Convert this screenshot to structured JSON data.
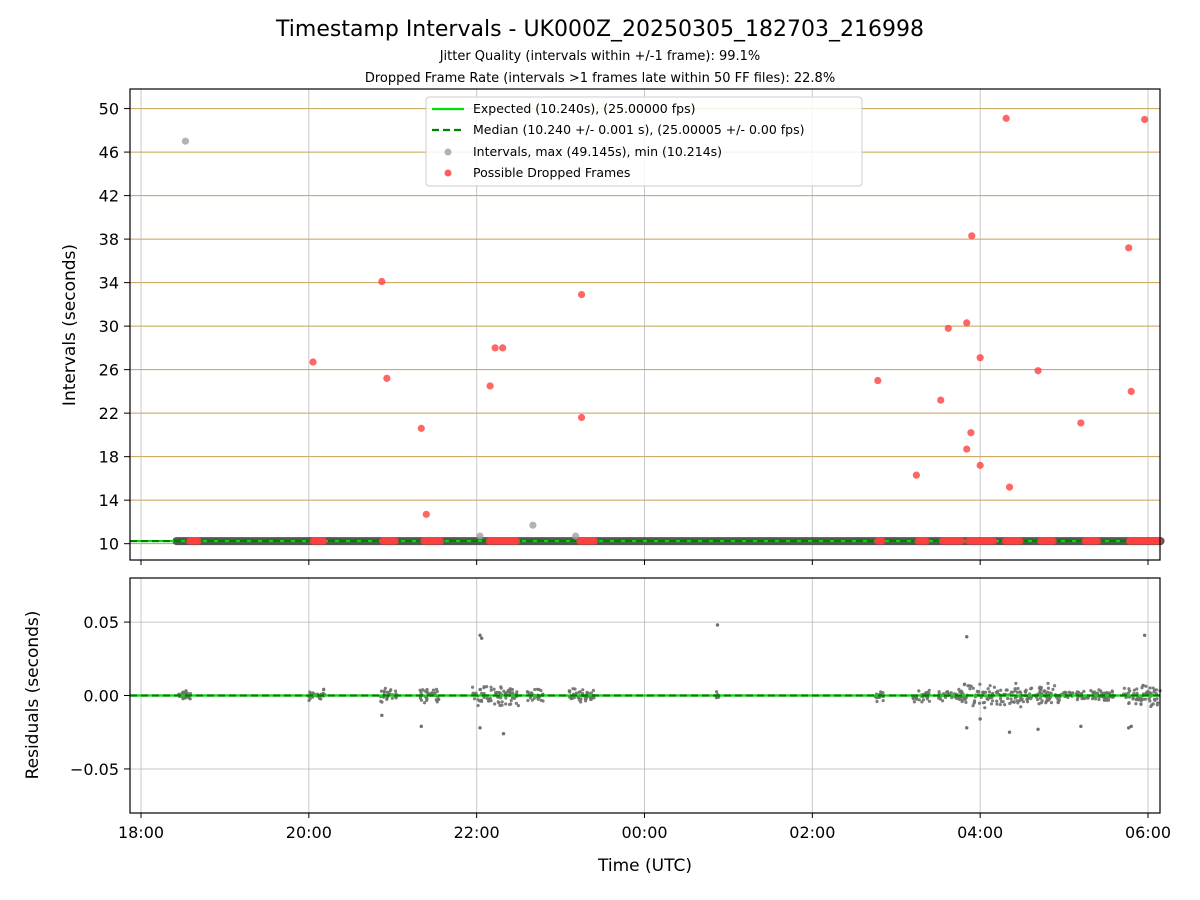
{
  "title": "Timestamp Intervals - UK000Z_20250305_182703_216998",
  "subtitle1": "Jitter Quality (intervals within +/-1 frame): 99.1%",
  "subtitle2": "Dropped Frame Rate (intervals >1 frames late within 50 FF files): 22.8%",
  "colors": {
    "expected": "#00e000",
    "median": "#007f00",
    "interval_point": "#a0a0a0",
    "dropped_point": "#ff4040",
    "hgrid_top": "#c8a050",
    "grid": "#b0b0b0",
    "residual_point": "#707070"
  },
  "chart_data": [
    {
      "type": "scatter",
      "panel": "intervals",
      "ylabel": "Intervals (seconds)",
      "x_unit": "hours since 18:00 UTC on the x axis",
      "xlim_labels": [
        "18:00",
        "06:00"
      ],
      "ylim": [
        8.5,
        51.8
      ],
      "yticks": [
        10,
        14,
        18,
        22,
        26,
        30,
        34,
        38,
        42,
        46,
        50
      ],
      "xticks": [
        "18:00",
        "20:00",
        "22:00",
        "00:00",
        "02:00",
        "04:00",
        "06:00"
      ],
      "grid": true,
      "legend_placement": "top-center",
      "legend": [
        {
          "label": "Expected (10.240s), (25.00000 fps)",
          "kind": "solid-line",
          "color": "#00e000"
        },
        {
          "label": "Median (10.240 +/- 0.001 s), (25.00005 +/- 0.00 fps)",
          "kind": "dashed-line",
          "color": "#007f00"
        },
        {
          "label": "Intervals, max (49.145s), min (10.214s)",
          "kind": "marker",
          "color": "#a0a0a0"
        },
        {
          "label": "Possible Dropped Frames",
          "kind": "marker",
          "color": "#ff4040"
        }
      ],
      "expected_interval": 10.24,
      "median_interval": 10.24,
      "baseline_span": [
        -0.15,
        12.15
      ],
      "gray_outliers": [
        {
          "x": 0.53,
          "y": 47.0
        },
        {
          "x": 4.04,
          "y": 10.7
        },
        {
          "x": 4.67,
          "y": 11.7
        },
        {
          "x": 5.18,
          "y": 10.7
        }
      ],
      "dropped_outliers": [
        {
          "x": 2.05,
          "y": 26.7
        },
        {
          "x": 2.87,
          "y": 34.1
        },
        {
          "x": 2.93,
          "y": 25.2
        },
        {
          "x": 3.34,
          "y": 20.6
        },
        {
          "x": 3.4,
          "y": 12.7
        },
        {
          "x": 4.16,
          "y": 24.5
        },
        {
          "x": 4.22,
          "y": 28.0
        },
        {
          "x": 4.31,
          "y": 28.0
        },
        {
          "x": 5.25,
          "y": 32.9
        },
        {
          "x": 5.25,
          "y": 21.6
        },
        {
          "x": 8.78,
          "y": 25.0
        },
        {
          "x": 9.24,
          "y": 16.3
        },
        {
          "x": 9.53,
          "y": 23.2
        },
        {
          "x": 9.62,
          "y": 29.8
        },
        {
          "x": 9.84,
          "y": 30.3
        },
        {
          "x": 9.84,
          "y": 18.7
        },
        {
          "x": 9.89,
          "y": 20.2
        },
        {
          "x": 9.9,
          "y": 38.3
        },
        {
          "x": 10.0,
          "y": 27.1
        },
        {
          "x": 10.0,
          "y": 17.2
        },
        {
          "x": 10.31,
          "y": 49.1
        },
        {
          "x": 10.35,
          "y": 15.2
        },
        {
          "x": 10.69,
          "y": 25.9
        },
        {
          "x": 11.2,
          "y": 21.1
        },
        {
          "x": 11.77,
          "y": 37.2
        },
        {
          "x": 11.8,
          "y": 24.0
        },
        {
          "x": 11.96,
          "y": 49.0
        }
      ],
      "dropped_near_expected_ranges": [
        [
          0.58,
          0.68
        ],
        [
          2.05,
          2.18
        ],
        [
          2.88,
          3.05
        ],
        [
          3.37,
          3.57
        ],
        [
          4.15,
          4.48
        ],
        [
          5.23,
          5.42
        ],
        [
          8.78,
          8.84
        ],
        [
          9.26,
          9.38
        ],
        [
          9.55,
          9.78
        ],
        [
          9.86,
          10.17
        ],
        [
          10.3,
          10.48
        ],
        [
          10.72,
          10.88
        ],
        [
          11.25,
          11.42
        ],
        [
          11.78,
          12.15
        ]
      ]
    },
    {
      "type": "scatter",
      "panel": "residuals",
      "ylabel": "Residuals (seconds)",
      "xlabel": "Time (UTC)",
      "ylim": [
        -0.08,
        0.08
      ],
      "yticks": [
        0.05,
        0.0,
        -0.05
      ],
      "ytick_labels": [
        "0.05",
        "0.00",
        "−0.05"
      ],
      "xticks": [
        "18:00",
        "20:00",
        "22:00",
        "00:00",
        "02:00",
        "04:00",
        "06:00"
      ],
      "grid": true,
      "residual_outliers": [
        {
          "x": 2.87,
          "y": -0.0135
        },
        {
          "x": 3.34,
          "y": -0.021
        },
        {
          "x": 4.04,
          "y": 0.041
        },
        {
          "x": 4.06,
          "y": 0.039
        },
        {
          "x": 4.04,
          "y": -0.022
        },
        {
          "x": 4.32,
          "y": -0.026
        },
        {
          "x": 6.87,
          "y": 0.048
        },
        {
          "x": 9.84,
          "y": 0.04
        },
        {
          "x": 9.84,
          "y": -0.022
        },
        {
          "x": 10.0,
          "y": -0.016
        },
        {
          "x": 10.35,
          "y": -0.025
        },
        {
          "x": 10.69,
          "y": -0.023
        },
        {
          "x": 11.2,
          "y": -0.021
        },
        {
          "x": 11.77,
          "y": -0.022
        },
        {
          "x": 11.8,
          "y": -0.021
        },
        {
          "x": 11.96,
          "y": 0.041
        }
      ],
      "residual_clusters": [
        [
          0.45,
          0.6,
          0.004
        ],
        [
          2.0,
          2.2,
          0.005
        ],
        [
          2.85,
          3.05,
          0.005
        ],
        [
          3.3,
          3.55,
          0.005
        ],
        [
          3.95,
          4.5,
          0.008
        ],
        [
          4.6,
          4.8,
          0.005
        ],
        [
          5.1,
          5.4,
          0.005
        ],
        [
          6.85,
          6.9,
          0.003
        ],
        [
          8.75,
          8.85,
          0.005
        ],
        [
          9.2,
          9.4,
          0.005
        ],
        [
          9.5,
          9.8,
          0.005
        ],
        [
          9.8,
          10.95,
          0.009
        ],
        [
          10.95,
          11.6,
          0.004
        ],
        [
          11.7,
          12.15,
          0.008
        ]
      ]
    }
  ]
}
